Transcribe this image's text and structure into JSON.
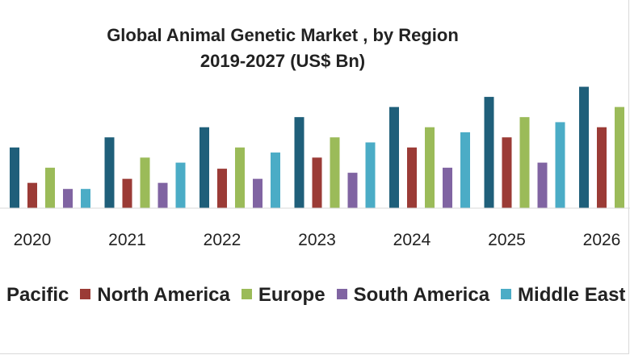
{
  "chart_data": {
    "type": "bar",
    "title": "Global Animal Genetic Market , by Region",
    "subtitle": "2019-2027 (US$ Bn)",
    "categories": [
      "2020",
      "2021",
      "2022",
      "2023",
      "2024",
      "2025",
      "2026"
    ],
    "series": [
      {
        "name": "Pacific",
        "color": "#1f5f7a",
        "values": [
          3.0,
          3.5,
          4.0,
          4.5,
          5.0,
          5.5,
          6.0
        ]
      },
      {
        "name": "North America",
        "color": "#9b3b36",
        "values": [
          1.25,
          1.45,
          1.95,
          2.5,
          3.0,
          3.5,
          4.0
        ]
      },
      {
        "name": "Europe",
        "color": "#9bbb59",
        "values": [
          2.0,
          2.5,
          3.0,
          3.5,
          4.0,
          4.5,
          5.0
        ]
      },
      {
        "name": "South America",
        "color": "#8064a2",
        "values": [
          0.95,
          1.25,
          1.45,
          1.75,
          2.0,
          2.25,
          2.5
        ]
      },
      {
        "name": "Middle East",
        "color": "#4bacc6",
        "values": [
          0.95,
          2.25,
          2.75,
          3.25,
          3.75,
          4.25,
          4.75
        ]
      }
    ],
    "legend": [
      "Pacific",
      "North America",
      "Europe",
      "South America",
      "Middle East"
    ],
    "legend_position": "bottom",
    "ylim": [
      0,
      6.5
    ],
    "grid": false
  }
}
